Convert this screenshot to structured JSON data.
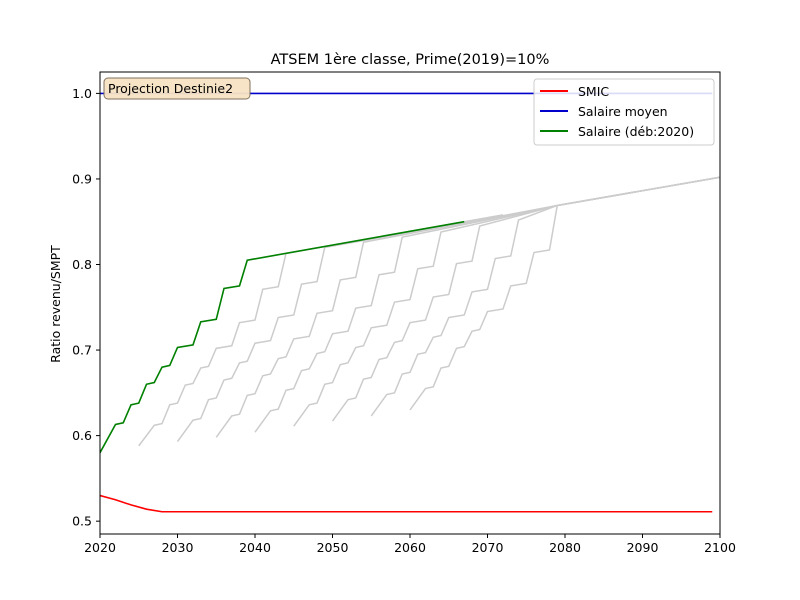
{
  "chart_data": {
    "type": "line",
    "title": "ATSEM 1ère classe, Prime(2019)=10%",
    "xlabel": "",
    "ylabel": "Ratio revenu/SMPT",
    "xlim": [
      2020,
      2100
    ],
    "ylim": [
      0.485,
      1.025
    ],
    "xticks": [
      2020,
      2030,
      2040,
      2050,
      2060,
      2070,
      2080,
      2090,
      2100
    ],
    "yticks": [
      0.5,
      0.6,
      0.7,
      0.8,
      0.9,
      1.0
    ],
    "ytick_labels": [
      "0.5",
      "0.6",
      "0.7",
      "0.8",
      "0.9",
      "1.0"
    ],
    "grid": false,
    "annotation": "Projection Destinie2",
    "legend_position": "top-right",
    "series": [
      {
        "name": "SMIC",
        "color": "#ff0000",
        "x": [
          2020,
          2022,
          2024,
          2026,
          2028,
          2030,
          2040,
          2060,
          2080,
          2099
        ],
        "y": [
          0.53,
          0.525,
          0.519,
          0.514,
          0.511,
          0.511,
          0.511,
          0.511,
          0.511,
          0.511
        ]
      },
      {
        "name": "Salaire moyen",
        "color": "#0000cd",
        "x": [
          2020,
          2099
        ],
        "y": [
          1.0,
          1.0
        ]
      },
      {
        "name": "Salaire (déb:2020)",
        "color": "#008000",
        "x": [
          2020,
          2022,
          2023,
          2024,
          2025,
          2026,
          2027,
          2028,
          2029,
          2030,
          2032,
          2033,
          2035,
          2036,
          2038,
          2039,
          2067
        ],
        "y": [
          0.58,
          0.613,
          0.615,
          0.636,
          0.638,
          0.66,
          0.662,
          0.68,
          0.682,
          0.703,
          0.706,
          0.733,
          0.736,
          0.772,
          0.775,
          0.805,
          0.85
        ]
      }
    ],
    "background_series_color": "#cccccc",
    "background_series": [
      {
        "x": [
          2025,
          2027,
          2028,
          2029,
          2030,
          2031,
          2032,
          2033,
          2034,
          2035,
          2037,
          2038,
          2040,
          2041,
          2043,
          2044,
          2072
        ],
        "y": [
          0.588,
          0.612,
          0.614,
          0.636,
          0.638,
          0.659,
          0.661,
          0.679,
          0.681,
          0.702,
          0.705,
          0.732,
          0.735,
          0.771,
          0.774,
          0.813,
          0.858
        ]
      },
      {
        "x": [
          2030,
          2032,
          2033,
          2034,
          2035,
          2036,
          2037,
          2038,
          2039,
          2040,
          2042,
          2043,
          2045,
          2046,
          2048,
          2049,
          2077
        ],
        "y": [
          0.593,
          0.618,
          0.62,
          0.642,
          0.644,
          0.665,
          0.667,
          0.685,
          0.687,
          0.708,
          0.711,
          0.738,
          0.741,
          0.777,
          0.78,
          0.82,
          0.865
        ]
      },
      {
        "x": [
          2035,
          2037,
          2038,
          2039,
          2040,
          2041,
          2042,
          2043,
          2044,
          2045,
          2047,
          2048,
          2050,
          2051,
          2053,
          2054,
          2079,
          2100
        ],
        "y": [
          0.598,
          0.623,
          0.625,
          0.647,
          0.649,
          0.67,
          0.672,
          0.69,
          0.692,
          0.713,
          0.716,
          0.743,
          0.746,
          0.782,
          0.785,
          0.826,
          0.869,
          0.902
        ]
      },
      {
        "x": [
          2040,
          2042,
          2043,
          2044,
          2045,
          2046,
          2047,
          2048,
          2049,
          2050,
          2052,
          2053,
          2055,
          2056,
          2058,
          2059,
          2079,
          2100
        ],
        "y": [
          0.604,
          0.629,
          0.631,
          0.653,
          0.655,
          0.676,
          0.678,
          0.696,
          0.698,
          0.719,
          0.722,
          0.749,
          0.752,
          0.788,
          0.791,
          0.832,
          0.869,
          0.902
        ]
      },
      {
        "x": [
          2045,
          2047,
          2048,
          2049,
          2050,
          2051,
          2052,
          2053,
          2054,
          2055,
          2057,
          2058,
          2060,
          2061,
          2063,
          2064,
          2079,
          2100
        ],
        "y": [
          0.611,
          0.636,
          0.638,
          0.66,
          0.662,
          0.683,
          0.685,
          0.703,
          0.705,
          0.726,
          0.729,
          0.756,
          0.759,
          0.795,
          0.798,
          0.838,
          0.869,
          0.902
        ]
      },
      {
        "x": [
          2050,
          2052,
          2053,
          2054,
          2055,
          2056,
          2057,
          2058,
          2059,
          2060,
          2062,
          2063,
          2065,
          2066,
          2068,
          2069,
          2079,
          2100
        ],
        "y": [
          0.617,
          0.642,
          0.644,
          0.666,
          0.668,
          0.689,
          0.691,
          0.709,
          0.711,
          0.732,
          0.735,
          0.762,
          0.765,
          0.801,
          0.804,
          0.845,
          0.869,
          0.902
        ]
      },
      {
        "x": [
          2055,
          2057,
          2058,
          2059,
          2060,
          2061,
          2062,
          2063,
          2064,
          2065,
          2067,
          2068,
          2070,
          2071,
          2073,
          2074,
          2079,
          2100
        ],
        "y": [
          0.623,
          0.648,
          0.65,
          0.672,
          0.674,
          0.695,
          0.697,
          0.715,
          0.717,
          0.738,
          0.741,
          0.768,
          0.771,
          0.807,
          0.81,
          0.852,
          0.869,
          0.902
        ]
      },
      {
        "x": [
          2060,
          2062,
          2063,
          2064,
          2065,
          2066,
          2067,
          2068,
          2069,
          2070,
          2072,
          2073,
          2075,
          2076,
          2078,
          2079,
          2100
        ],
        "y": [
          0.63,
          0.655,
          0.657,
          0.679,
          0.681,
          0.702,
          0.704,
          0.722,
          0.724,
          0.745,
          0.748,
          0.775,
          0.778,
          0.814,
          0.817,
          0.869,
          0.902
        ]
      }
    ]
  }
}
